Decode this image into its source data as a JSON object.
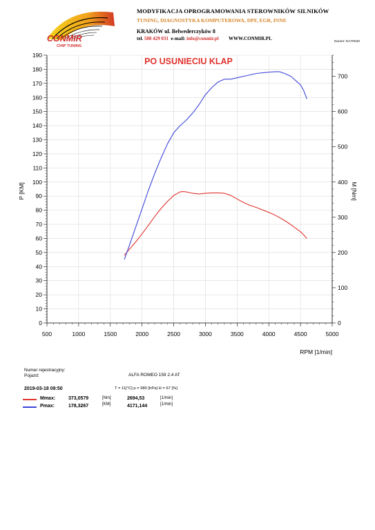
{
  "header": {
    "title": "MODYFIKACJA OPROGRAMOWANIA STEROWNIKÓW SILNIKÓW",
    "subtitle": "TUNING, DIAGNOSTYKA KOMPUTEROWA, DPF, EGR, INNE",
    "address": "KRAKÓW ul. Belwederczyków 8",
    "tel_label": "tel.",
    "tel": "508 429 031",
    "email_label": "e-mail:",
    "email": "info@conmir.pl",
    "www": "WWW.CONMIR.PL",
    "doc_number": "Numer: DA70020"
  },
  "logo": {
    "brand": "CONMIR",
    "tagline": "CHIP TUNING"
  },
  "chart_data": {
    "type": "line",
    "title": "PO USUNIECIU KLAP",
    "xlabel": "RPM [1/min]",
    "ylabel": "P [KM]",
    "y2label": "M [Nm]",
    "xlim": [
      500,
      5000
    ],
    "ylim": [
      0,
      190
    ],
    "y2lim": [
      0,
      760
    ],
    "xticks": [
      500,
      1000,
      1500,
      2000,
      2500,
      3000,
      3500,
      4000,
      4500,
      5000
    ],
    "yticks": [
      0,
      10,
      20,
      30,
      40,
      50,
      60,
      70,
      80,
      90,
      100,
      110,
      120,
      130,
      140,
      150,
      160,
      170,
      180,
      190
    ],
    "y2ticks": [
      0,
      100,
      200,
      300,
      400,
      500,
      600,
      700
    ],
    "grid": true,
    "series": [
      {
        "color": "#e0322c",
        "axis": "right",
        "x": [
          1720,
          1800,
          1900,
          2000,
          2100,
          2200,
          2300,
          2400,
          2500,
          2600,
          2650,
          2700,
          2800,
          2900,
          3000,
          3100,
          3200,
          3300,
          3400,
          3500,
          3600,
          3700,
          3800,
          3900,
          4000,
          4100,
          4200,
          4300,
          4400,
          4500,
          4550,
          4600
        ],
        "y": [
          192,
          209,
          230,
          253,
          277,
          302,
          325,
          345,
          362,
          372,
          373,
          372,
          368,
          366,
          368,
          369,
          369,
          368,
          362,
          352,
          342,
          334,
          328,
          321,
          314,
          306,
          296,
          285,
          272,
          259,
          250,
          240
        ]
      },
      {
        "color": "#3b44d6",
        "axis": "left",
        "x": [
          1720,
          1800,
          1900,
          2000,
          2100,
          2200,
          2300,
          2400,
          2500,
          2600,
          2700,
          2800,
          2900,
          3000,
          3100,
          3200,
          3300,
          3400,
          3500,
          3600,
          3700,
          3800,
          3900,
          4000,
          4100,
          4171,
          4250,
          4350,
          4450,
          4500,
          4550,
          4600
        ],
        "y": [
          45,
          55,
          68,
          81,
          94,
          106,
          117,
          127,
          135,
          140,
          144,
          149,
          155,
          162,
          167,
          171,
          173,
          173,
          174,
          175,
          176,
          177,
          177.5,
          178,
          178.3,
          178.3,
          177,
          175,
          171,
          169,
          165,
          159
        ]
      }
    ]
  },
  "vehicle": {
    "reg_label": "Numer rejestracyjny:",
    "car_label": "Pojazd:",
    "car_value": "ALFA ROMEO   159 2.4 AT"
  },
  "conditions": {
    "date": "2019-03-18  09:50",
    "env": "T = 11[°C]  p = 980 [hPa]  H = 67 [%]"
  },
  "results": [
    {
      "label": "Mmax:",
      "value": "373,0579",
      "unit": "[Nm]",
      "rpm": "2694,53",
      "rpm_unit": "[1/min]",
      "color": "#e0322c"
    },
    {
      "label": "Pmax:",
      "value": "178,3267",
      "unit": "[KM]",
      "rpm": "4171,144",
      "rpm_unit": "[1/min]",
      "color": "#3b44d6"
    }
  ]
}
